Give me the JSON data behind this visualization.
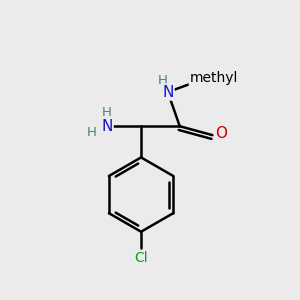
{
  "background_color": "#ebebeb",
  "atom_colors": {
    "C": "#000000",
    "N": "#1414cc",
    "O": "#cc0000",
    "Cl": "#00aa00",
    "H_label": "#4a8080"
  },
  "bond_color": "#000000",
  "bond_width": 1.8,
  "figsize": [
    3.0,
    3.0
  ],
  "dpi": 100,
  "xlim": [
    0,
    10
  ],
  "ylim": [
    0,
    10
  ]
}
